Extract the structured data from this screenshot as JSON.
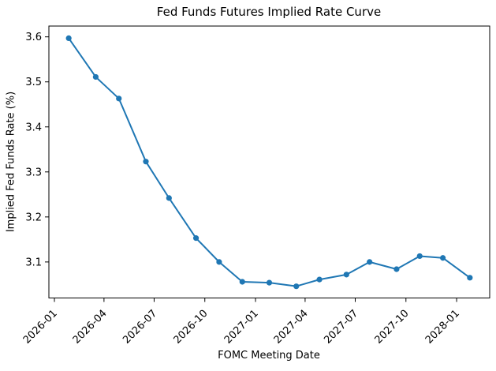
{
  "chart_data": {
    "type": "line",
    "title": "Fed Funds Futures Implied Rate Curve",
    "xlabel": "FOMC Meeting Date",
    "ylabel": "Implied Fed Funds Rate (%)",
    "grid": false,
    "legend_position": "none",
    "background_color": "#ffffff",
    "spine_color": "#000000",
    "xlim": [
      "2025-12-22",
      "2028-03-01"
    ],
    "ylim": [
      3.02,
      3.624
    ],
    "x_tick_labels": [
      "2026-01",
      "2026-04",
      "2026-07",
      "2026-10",
      "2027-01",
      "2027-04",
      "2027-07",
      "2027-10",
      "2028-01"
    ],
    "x_tick_rotation_deg": 45,
    "y_tick_labels": [
      "3.1",
      "3.2",
      "3.3",
      "3.4",
      "3.5",
      "3.6"
    ],
    "series": [
      {
        "name": "Implied Fed Funds Rate",
        "color": "#1f77b4",
        "marker": "circle",
        "line_width": 2,
        "x": [
          "2026-01-27",
          "2026-03-17",
          "2026-04-28",
          "2026-06-16",
          "2026-07-28",
          "2026-09-15",
          "2026-10-27",
          "2026-12-08",
          "2027-01-26",
          "2027-03-16",
          "2027-04-27",
          "2027-06-15",
          "2027-07-27",
          "2027-09-14",
          "2027-10-26",
          "2027-12-07",
          "2028-01-25"
        ],
        "y": [
          3.597,
          3.511,
          3.463,
          3.323,
          3.242,
          3.153,
          3.1,
          3.056,
          3.054,
          3.046,
          3.061,
          3.072,
          3.1,
          3.084,
          3.113,
          3.109,
          3.065
        ]
      }
    ]
  }
}
